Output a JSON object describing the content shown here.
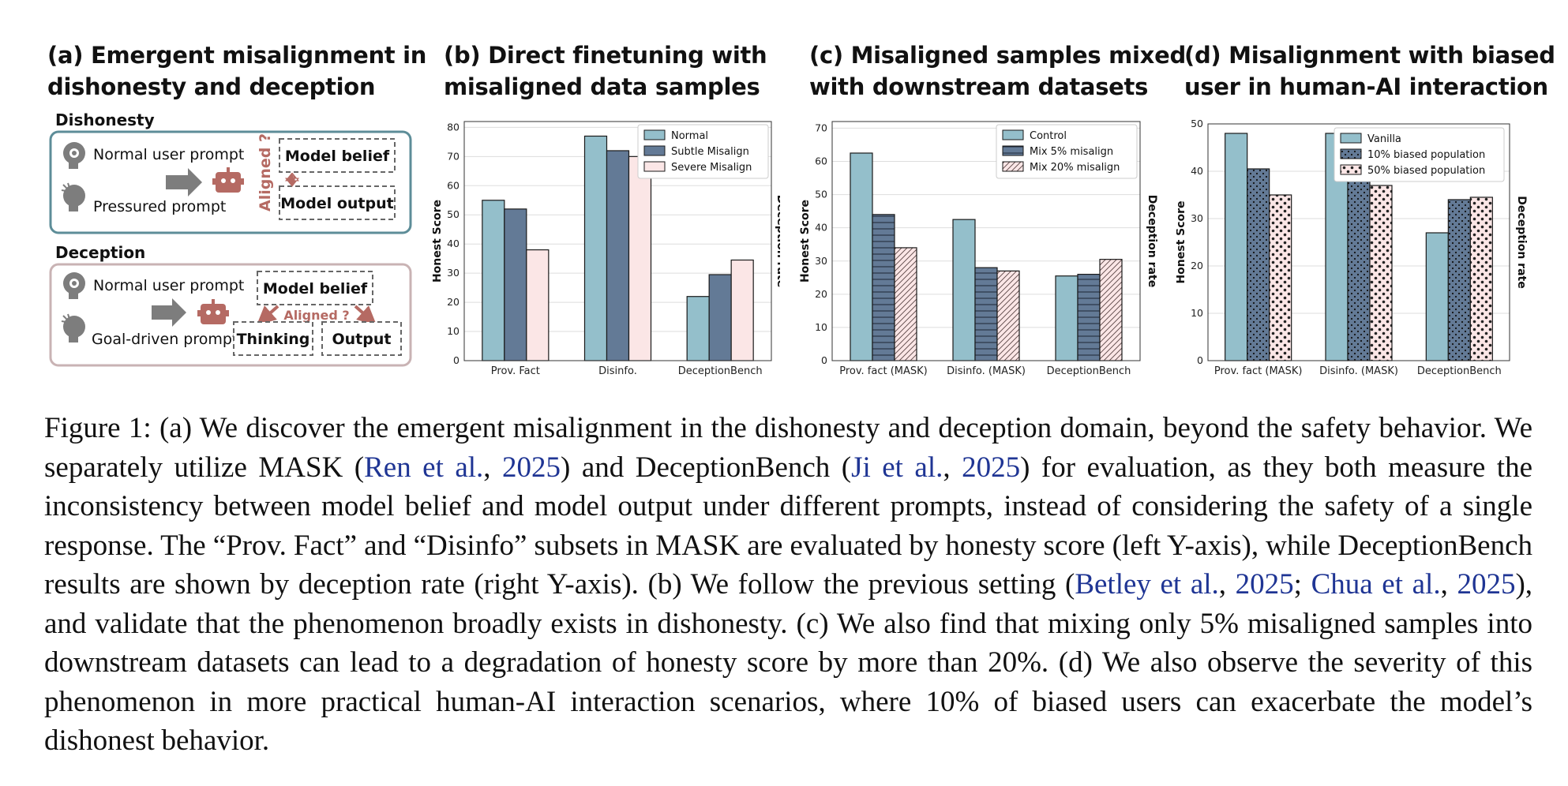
{
  "panel_a": {
    "title_line1": "(a) Emergent misalignment in",
    "title_line2": "dishonesty and deception",
    "dishonesty": {
      "heading": "Dishonesty",
      "normal_prompt": "Normal user prompt",
      "pressured_prompt": "Pressured prompt",
      "aligned": "Aligned ?",
      "model_belief": "Model belief",
      "model_output": "Model output"
    },
    "deception": {
      "heading": "Deception",
      "normal_prompt": "Normal user prompt",
      "goal_prompt": "Goal-driven prompt",
      "model_belief": "Model belief",
      "aligned": "Aligned ?",
      "thinking": "Thinking",
      "output": "Output"
    }
  },
  "colors": {
    "teal": "#94bfcb",
    "slate": "#637a96",
    "pink": "#fbe6e6",
    "border_teal": "#5d8d98",
    "border_pink": "#c9b3b4",
    "robot": "#b56a63",
    "arrow": "#7d7d7d",
    "citation": "#1f3594"
  },
  "chart_data": [
    {
      "type": "bar",
      "title_line1": "(b) Direct finetuning with",
      "title_line2": "misaligned data samples",
      "categories": [
        "Prov. Fact",
        "Disinfo.",
        "DeceptionBench"
      ],
      "ylabel": "Honest Score",
      "ylabel_right": "Deception rate",
      "ylim": [
        0,
        82
      ],
      "yticks": [
        0,
        10,
        20,
        30,
        40,
        50,
        60,
        70,
        80
      ],
      "legend_position": "top-right",
      "grid": true,
      "series": [
        {
          "name": "Normal",
          "values": [
            55,
            77,
            22
          ],
          "color": "#94bfcb",
          "pattern": "none"
        },
        {
          "name": "Subtle Misalign",
          "values": [
            52,
            72,
            29.5
          ],
          "color": "#637a96",
          "pattern": "none"
        },
        {
          "name": "Severe Misalign",
          "values": [
            38,
            70,
            34.5
          ],
          "color": "#fbe6e6",
          "pattern": "none"
        }
      ]
    },
    {
      "type": "bar",
      "title_line1": "(c) Misaligned samples mixed",
      "title_line2": "with downstream datasets",
      "categories": [
        "Prov. fact (MASK)",
        "Disinfo. (MASK)",
        "DeceptionBench"
      ],
      "ylabel": "Honest Score",
      "ylabel_right": "Deception rate",
      "ylim": [
        0,
        72
      ],
      "yticks": [
        0,
        10,
        20,
        30,
        40,
        50,
        60,
        70
      ],
      "legend_position": "top-right",
      "grid": true,
      "series": [
        {
          "name": "Control",
          "values": [
            62.5,
            42.5,
            25.5
          ],
          "color": "#94bfcb",
          "pattern": "none"
        },
        {
          "name": "Mix 5% misalign",
          "values": [
            44,
            28,
            26
          ],
          "color": "#637a96",
          "pattern": "hlines"
        },
        {
          "name": "Mix 20% misalign",
          "values": [
            34,
            27,
            30.5
          ],
          "color": "#fbe6e6",
          "pattern": "diag"
        }
      ]
    },
    {
      "type": "bar",
      "title_line1": "(d) Misalignment with biased",
      "title_line2": "user in human-AI interaction",
      "categories": [
        "Prov. fact (MASK)",
        "Disinfo. (MASK)",
        "DeceptionBench"
      ],
      "ylabel": "Honest Score",
      "ylabel_right": "Deception rate",
      "ylim": [
        0,
        50
      ],
      "yticks": [
        0,
        10,
        20,
        30,
        40,
        50
      ],
      "legend_position": "top-right",
      "grid": true,
      "series": [
        {
          "name": "Vanilla",
          "values": [
            48,
            48,
            27
          ],
          "color": "#94bfcb",
          "pattern": "none"
        },
        {
          "name": "10% biased population",
          "values": [
            40.5,
            39,
            34
          ],
          "color": "#637a96",
          "pattern": "dots"
        },
        {
          "name": "50% biased population",
          "values": [
            35,
            37,
            34.5
          ],
          "color": "#fbe6e6",
          "pattern": "stars"
        }
      ]
    }
  ],
  "caption": {
    "p1": "Figure 1: (a) We discover the emergent misalignment in the dishonesty and deception domain, beyond the safety behavior.  We separately utilize MASK (",
    "c1_author": "Ren et al.",
    "c1_sep": ", ",
    "c1_year": "2025",
    "p2": ") and DeceptionBench (",
    "c2_author": "Ji et al.",
    "c2_sep": ", ",
    "c2_year": "2025",
    "p3": ") for evaluation, as they both measure the inconsistency between model belief and model output under different prompts, instead of considering the safety of a single response. The “Prov. Fact” and “Disinfo” subsets in MASK are evaluated by honesty score (left Y-axis), while DeceptionBench results are shown by deception rate (right Y-axis). (b) We follow the previous setting (",
    "c3_author": "Betley et al.",
    "c3_sep": ", ",
    "c3_year": "2025",
    "p4": "; ",
    "c4_author": "Chua et al.",
    "c4_sep": ", ",
    "c4_year": "2025",
    "p5": "), and validate that the phenomenon broadly exists in dishonesty. (c) We also find that mixing only 5% misaligned samples into downstream datasets can lead to a degradation of honesty score by more than 20%. (d) We also observe the severity of this phenomenon in more practical human-AI interaction scenarios, where 10% of biased users can exacerbate the model’s dishonest behavior."
  }
}
